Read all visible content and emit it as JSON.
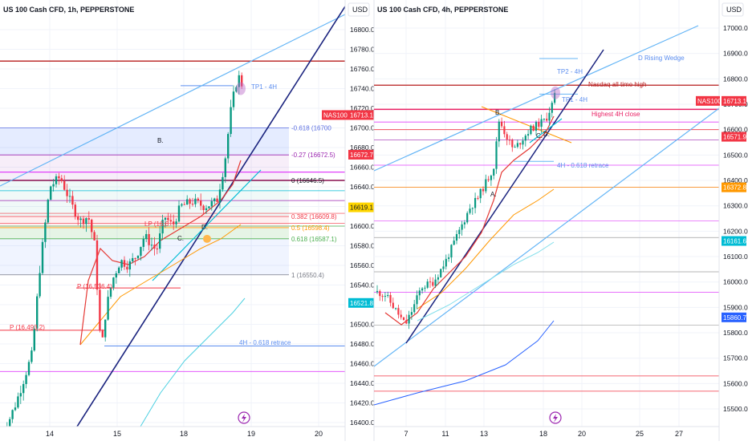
{
  "left_chart": {
    "title": "US 100 Cash CFD, 1h, PEPPERSTONE",
    "currency": "USD",
    "y_ticks": [
      16800.0,
      16780.0,
      16760.0,
      16740.0,
      16720.0,
      16700.0,
      16680.0,
      16660.0,
      16640.0,
      16620.0,
      16600.0,
      16580.0,
      16560.0,
      16540.0,
      16520.0,
      16500.0,
      16480.0,
      16460.0,
      16440.0,
      16420.0,
      16400.0
    ],
    "x_ticks": [
      "14",
      "15",
      "18",
      "19",
      "20"
    ],
    "price_tags": [
      {
        "text": "NAS100",
        "kind": "name",
        "color": "#f23645"
      },
      {
        "text": "16713.1",
        "value": 16713.1,
        "color": "#f23645"
      },
      {
        "text": "16672.7",
        "value": 16672.7,
        "color": "#f23645"
      },
      {
        "text": "16619.1",
        "value": 16619.1,
        "color": "#ffd600"
      },
      {
        "text": "16521.8",
        "value": 16521.8,
        "color": "#00bcd4"
      }
    ],
    "fib_labels": [
      {
        "text": "-0.618 (16700",
        "value": 16700,
        "color": "#5b6ee1"
      },
      {
        "text": "-0.27 (16672.5)",
        "value": 16672.5,
        "color": "#9c27b0"
      },
      {
        "text": "0 (16646.5)",
        "value": 16646.5,
        "color": "#131722"
      },
      {
        "text": "0.382 (16609.8)",
        "value": 16609.8,
        "color": "#f23645"
      },
      {
        "text": "0.5 (16598.4)",
        "value": 16598.4,
        "color": "#ff9800"
      },
      {
        "text": "0.618 (16587.1)",
        "value": 16587.1,
        "color": "#4caf50"
      },
      {
        "text": "1 (16550.4)",
        "value": 16550.4,
        "color": "#787b86"
      }
    ],
    "annotations": [
      "TP1 - 4H",
      "B.",
      "C.",
      "D.",
      "P (16,536.4)",
      "P (16,493.2)",
      "4H - 0.618 retrace",
      "LP (16,6"
    ]
  },
  "right_chart": {
    "title": "US 100 Cash CFD, 4h, PEPPERSTONE",
    "currency": "USD",
    "y_ticks": [
      17000.0,
      16900.0,
      16800.0,
      16700.0,
      16600.0,
      16500.0,
      16400.0,
      16300.0,
      16200.0,
      16100.0,
      16000.0,
      15900.0,
      15800.0,
      15700.0,
      15600.0,
      15500.0
    ],
    "x_ticks": [
      "7",
      "11",
      "13",
      "18",
      "20",
      "25",
      "27"
    ],
    "price_tags": [
      {
        "text": "NAS100",
        "kind": "name",
        "color": "#f23645"
      },
      {
        "text": "16713.1",
        "value": 16713.1,
        "color": "#f23645"
      },
      {
        "text": "16571.9",
        "value": 16571.9,
        "color": "#f23645"
      },
      {
        "text": "16372.8",
        "value": 16372.8,
        "color": "#ff9800"
      },
      {
        "text": "16161.6",
        "value": 16161.6,
        "color": "#00bcd4"
      },
      {
        "text": "15860.7",
        "value": 15860.7,
        "color": "#2962ff"
      }
    ],
    "annotations": [
      "D Rising Wedge",
      "TP2 - 4H",
      "Nasdaq all time high",
      "TP1 - 4H",
      "Highest 4H close",
      "4H - 0.618 retrace",
      "A.",
      "B.",
      "C.",
      "D."
    ]
  },
  "colors": {
    "up": "#089981",
    "down": "#f23645",
    "grid": "#f0f3fa"
  },
  "icons": [
    "lightning-icon"
  ]
}
